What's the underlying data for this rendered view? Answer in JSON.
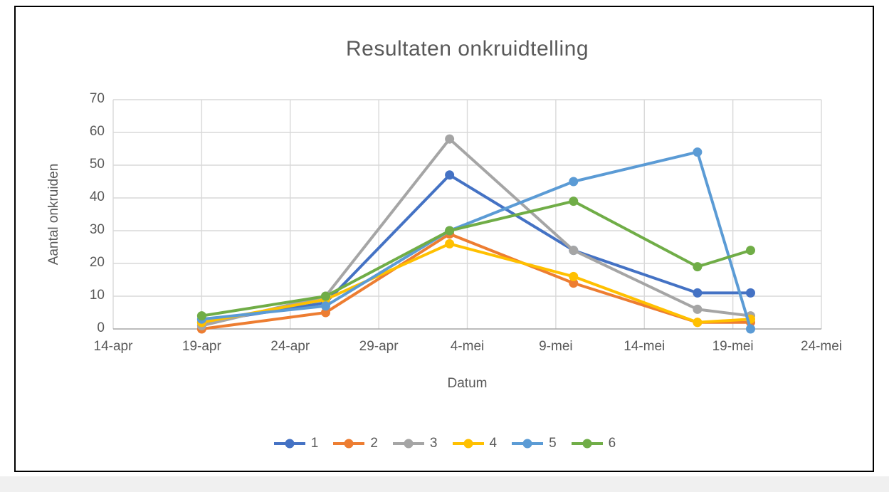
{
  "chart_data": {
    "type": "line",
    "title": "Resultaten onkruidtelling",
    "xlabel": "Datum",
    "ylabel": "Aantal onkruiden",
    "x_axis": {
      "tick_labels": [
        "14-apr",
        "19-apr",
        "24-apr",
        "29-apr",
        "4-mei",
        "9-mei",
        "14-mei",
        "19-mei",
        "24-mei"
      ],
      "tick_days": [
        0,
        5,
        10,
        15,
        20,
        25,
        30,
        35,
        40
      ],
      "range_days": [
        0,
        40
      ]
    },
    "y_axis": {
      "min": 0,
      "max": 70,
      "step": 10,
      "tick_labels": [
        "0",
        "10",
        "20",
        "30",
        "40",
        "50",
        "60",
        "70"
      ]
    },
    "point_dates": [
      "19-apr",
      "26-apr",
      "3-mei",
      "10-mei",
      "17-mei",
      "20-mei"
    ],
    "point_days": [
      5,
      12,
      19,
      26,
      33,
      36
    ],
    "series": [
      {
        "name": "1",
        "color": "#4472C4",
        "values": [
          2,
          8,
          47,
          24,
          11,
          11
        ]
      },
      {
        "name": "2",
        "color": "#ED7D31",
        "values": [
          0,
          5,
          29,
          14,
          2,
          2
        ]
      },
      {
        "name": "3",
        "color": "#A5A5A5",
        "values": [
          1,
          10,
          58,
          24,
          6,
          4
        ]
      },
      {
        "name": "4",
        "color": "#FFC000",
        "values": [
          2,
          9,
          26,
          16,
          2,
          3
        ]
      },
      {
        "name": "5",
        "color": "#5B9BD5",
        "values": [
          3,
          7,
          30,
          45,
          54,
          0
        ]
      },
      {
        "name": "6",
        "color": "#70AD47",
        "values": [
          4,
          10,
          30,
          39,
          19,
          24
        ]
      }
    ],
    "grid": true,
    "legend_position": "bottom",
    "colors": {
      "text": "#595959",
      "gridline": "#D9D9D9",
      "axis_line": "#A6A6A6"
    }
  }
}
